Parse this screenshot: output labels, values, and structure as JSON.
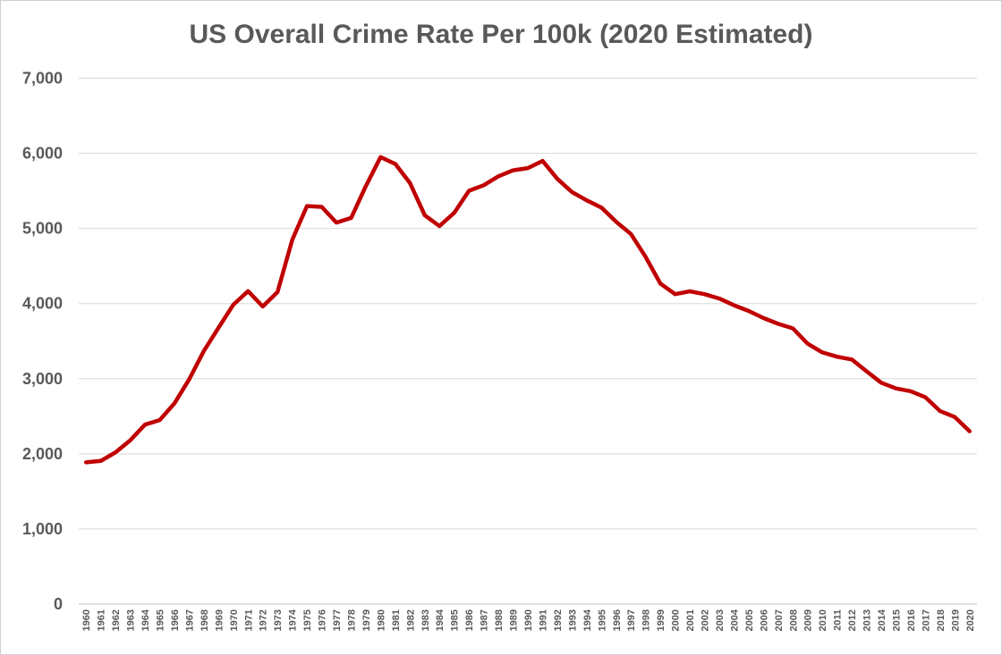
{
  "chart_data": {
    "type": "line",
    "title": "US Overall Crime Rate Per 100k (2020 Estimated)",
    "xlabel": "",
    "ylabel": "",
    "ylim": [
      0,
      7000
    ],
    "yticks": [
      0,
      1000,
      2000,
      3000,
      4000,
      5000,
      6000,
      7000
    ],
    "ytick_labels": [
      "0",
      "1,000",
      "2,000",
      "3,000",
      "4,000",
      "5,000",
      "6,000",
      "7,000"
    ],
    "grid": true,
    "legend": "none",
    "line_color": "#C00000",
    "x": [
      1960,
      1961,
      1962,
      1963,
      1964,
      1965,
      1966,
      1967,
      1968,
      1969,
      1970,
      1971,
      1972,
      1973,
      1974,
      1975,
      1976,
      1977,
      1978,
      1979,
      1980,
      1981,
      1982,
      1983,
      1984,
      1985,
      1986,
      1987,
      1988,
      1989,
      1990,
      1991,
      1992,
      1993,
      1994,
      1995,
      1996,
      1997,
      1998,
      1999,
      2000,
      2001,
      2002,
      2003,
      2004,
      2005,
      2006,
      2007,
      2008,
      2009,
      2010,
      2011,
      2012,
      2013,
      2014,
      2015,
      2016,
      2017,
      2018,
      2019,
      2020
    ],
    "series": [
      {
        "values": [
          1887,
          1906,
          2020,
          2180,
          2388,
          2449,
          2671,
          2990,
          3370,
          3680,
          3985,
          4165,
          3961,
          4154,
          4850,
          5298,
          5287,
          5078,
          5140,
          5566,
          5950,
          5858,
          5604,
          5175,
          5031,
          5207,
          5501,
          5575,
          5694,
          5774,
          5803,
          5898,
          5661,
          5484,
          5374,
          5276,
          5087,
          4927,
          4620,
          4267,
          4125,
          4163,
          4125,
          4067,
          3977,
          3901,
          3808,
          3730,
          3669,
          3466,
          3350,
          3292,
          3256,
          3099,
          2946,
          2870,
          2833,
          2752,
          2568,
          2490,
          2300
        ]
      }
    ]
  }
}
